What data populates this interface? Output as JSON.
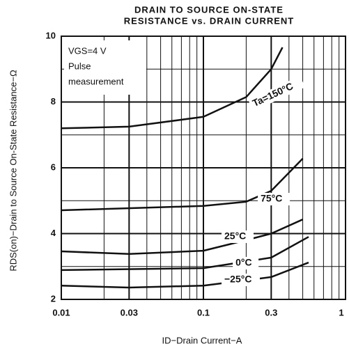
{
  "chart_data": {
    "type": "line",
    "title": [
      "DRAIN TO SOURCE ON-STATE",
      "RESISTANCE vs. DRAIN CURRENT"
    ],
    "x_label": "ID−Drain Current−A",
    "y_label": "RDS(on)−Drain to Source On-State Resistance−Ω",
    "annotations": [
      "VGS=4 V",
      "Pulse",
      "measurement"
    ],
    "x_scale": "log",
    "xlim": [
      0.01,
      1
    ],
    "xticks": [
      0.01,
      0.03,
      0.1,
      0.3,
      1
    ],
    "x_minor_grid": [
      0.02,
      0.04,
      0.05,
      0.06,
      0.07,
      0.08,
      0.09,
      0.2,
      0.4,
      0.5,
      0.6,
      0.7,
      0.8,
      0.9
    ],
    "ylim": [
      2,
      10
    ],
    "yticks": [
      2,
      4,
      6,
      8,
      10
    ],
    "y_minor_grid": [
      3,
      5,
      7,
      9
    ],
    "grid": true,
    "series": [
      {
        "name": "Ta=150°C",
        "color": "#111111",
        "x": [
          0.01,
          0.03,
          0.1,
          0.2,
          0.3,
          0.36
        ],
        "values": [
          7.2,
          7.25,
          7.55,
          8.15,
          9.0,
          9.66
        ]
      },
      {
        "name": "75°C",
        "color": "#111111",
        "x": [
          0.01,
          0.1,
          0.2,
          0.3,
          0.5
        ],
        "values": [
          4.71,
          4.84,
          4.97,
          5.3,
          6.28
        ]
      },
      {
        "name": "25°C",
        "color": "#111111",
        "x": [
          0.01,
          0.03,
          0.1,
          0.2,
          0.3,
          0.5
        ],
        "values": [
          3.46,
          3.38,
          3.48,
          3.8,
          4.0,
          4.43
        ]
      },
      {
        "name": "0°C",
        "color": "#111111",
        "x": [
          0.01,
          0.1,
          0.3,
          0.55
        ],
        "values": [
          2.89,
          2.95,
          3.27,
          3.9
        ]
      },
      {
        "name": "−25°C",
        "color": "#111111",
        "x": [
          0.01,
          0.03,
          0.1,
          0.3,
          0.55
        ],
        "values": [
          2.42,
          2.36,
          2.42,
          2.68,
          3.12
        ]
      }
    ]
  }
}
